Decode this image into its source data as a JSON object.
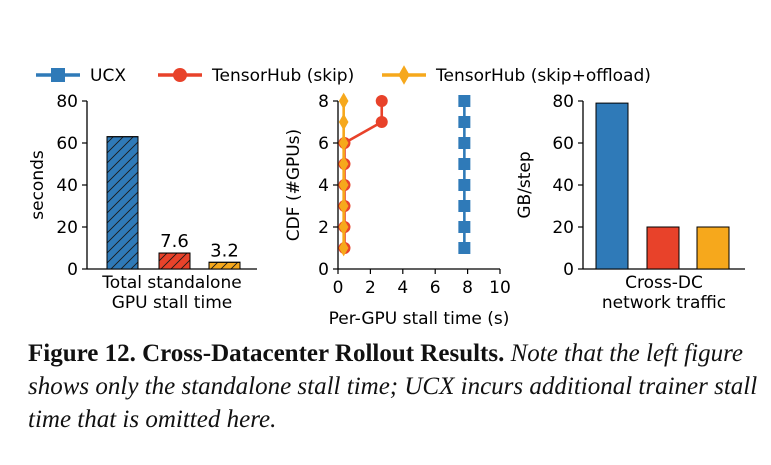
{
  "legend": [
    {
      "name": "UCX",
      "color": "#2f7ab8",
      "marker": "square"
    },
    {
      "name": "TensorHub (skip)",
      "color": "#e8422a",
      "marker": "circle"
    },
    {
      "name": "TensorHub (skip+offload)",
      "color": "#f6a81c",
      "marker": "diamond"
    }
  ],
  "chart_data": [
    {
      "type": "bar",
      "ylabel": "seconds",
      "xlabel_lines": [
        "Total standalone",
        "GPU stall time"
      ],
      "ylim": [
        0,
        80
      ],
      "yticks": [
        0,
        20,
        40,
        60,
        80
      ],
      "series": [
        {
          "name": "UCX",
          "value": 63,
          "color": "#2f7ab8",
          "hatch": true
        },
        {
          "name": "TensorHub (skip)",
          "value": 7.6,
          "color": "#e8422a",
          "hatch": true,
          "label": "7.6"
        },
        {
          "name": "TensorHub (skip+offload)",
          "value": 3.2,
          "color": "#f6a81c",
          "hatch": true,
          "label": "3.2"
        }
      ]
    },
    {
      "type": "line",
      "xlabel": "Per-GPU stall time (s)",
      "ylabel": "CDF (#GPUs)",
      "xlim": [
        0,
        10
      ],
      "ylim": [
        0,
        8
      ],
      "xticks": [
        0,
        2,
        4,
        6,
        8,
        10
      ],
      "yticks": [
        0,
        2,
        4,
        6,
        8
      ],
      "series": [
        {
          "name": "UCX",
          "color": "#2f7ab8",
          "marker": "square",
          "x": [
            7.8,
            7.8,
            7.8,
            7.8,
            7.8,
            7.8,
            7.8,
            7.8
          ],
          "y": [
            1,
            2,
            3,
            4,
            5,
            6,
            7,
            8
          ]
        },
        {
          "name": "TensorHub (skip)",
          "color": "#e8422a",
          "marker": "circle",
          "x": [
            0.4,
            0.4,
            0.4,
            0.4,
            0.4,
            0.4,
            2.7,
            2.7
          ],
          "y": [
            1,
            2,
            3,
            4,
            5,
            6,
            7,
            8
          ]
        },
        {
          "name": "TensorHub (skip+offload)",
          "color": "#f6a81c",
          "marker": "diamond",
          "x": [
            0.35,
            0.35,
            0.35,
            0.35,
            0.35,
            0.35,
            0.35,
            0.35
          ],
          "y": [
            1,
            2,
            3,
            4,
            5,
            6,
            7,
            8
          ]
        }
      ]
    },
    {
      "type": "bar",
      "ylabel": "GB/step",
      "xlabel_lines": [
        "Cross-DC",
        "network traffic"
      ],
      "ylim": [
        0,
        80
      ],
      "yticks": [
        0,
        20,
        40,
        60,
        80
      ],
      "series": [
        {
          "name": "UCX",
          "value": 79,
          "color": "#2f7ab8"
        },
        {
          "name": "TensorHub (skip)",
          "value": 20,
          "color": "#e8422a"
        },
        {
          "name": "TensorHub (skip+offload)",
          "value": 20,
          "color": "#f6a81c"
        }
      ]
    }
  ],
  "caption": {
    "lead": "Figure 12. Cross-Datacenter Rollout Results.",
    "body": "Note that the left figure shows only the standalone stall time; UCX incurs additional trainer stall time that is omitted here."
  }
}
